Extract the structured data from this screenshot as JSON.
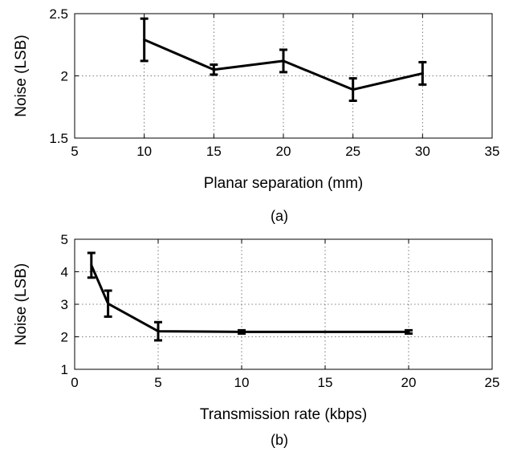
{
  "chart_data": [
    {
      "type": "line",
      "caption": "(a)",
      "xlabel": "Planar separation (mm)",
      "ylabel": "Noise (LSB)",
      "xlim": [
        5,
        35
      ],
      "ylim": [
        1.5,
        2.5
      ],
      "xticks": [
        5,
        10,
        15,
        20,
        25,
        30,
        35
      ],
      "yticks": [
        1.5,
        2,
        2.5
      ],
      "xtick_labels": [
        "5",
        "10",
        "15",
        "20",
        "25",
        "30",
        "35"
      ],
      "ytick_labels": [
        "1.5",
        "2",
        "2.5"
      ],
      "grid": true,
      "series": [
        {
          "x": [
            10,
            15,
            20,
            25,
            30
          ],
          "y": [
            2.29,
            2.05,
            2.12,
            1.89,
            2.02
          ],
          "yerr": [
            0.17,
            0.04,
            0.09,
            0.09,
            0.09
          ]
        }
      ]
    },
    {
      "type": "line",
      "caption": "(b)",
      "xlabel": "Transmission rate (kbps)",
      "ylabel": "Noise (LSB)",
      "xlim": [
        0,
        25
      ],
      "ylim": [
        1,
        5
      ],
      "xticks": [
        0,
        5,
        10,
        15,
        20,
        25
      ],
      "yticks": [
        1,
        2,
        3,
        4,
        5
      ],
      "xtick_labels": [
        "0",
        "5",
        "10",
        "15",
        "20",
        "25"
      ],
      "ytick_labels": [
        "1",
        "2",
        "3",
        "4",
        "5"
      ],
      "grid": true,
      "series": [
        {
          "x": [
            1,
            2,
            5,
            10,
            20
          ],
          "y": [
            4.2,
            3.02,
            2.17,
            2.15,
            2.15
          ],
          "yerr": [
            0.38,
            0.4,
            0.28,
            0.05,
            0.05
          ]
        }
      ]
    }
  ]
}
